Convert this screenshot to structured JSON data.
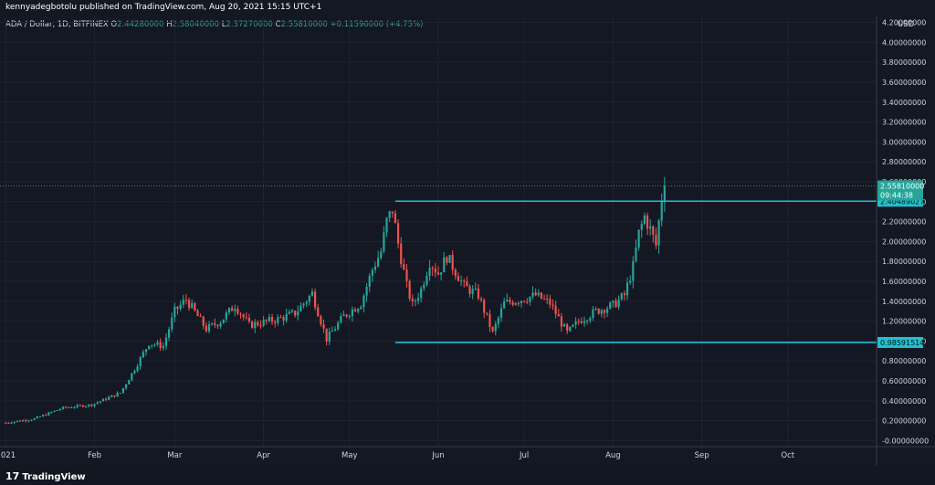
{
  "header": {
    "published": "kennyadegbotolu published on TradingView.com, Aug 20, 2021 15:15 UTC+1",
    "symbol": "ADA / Dollar, 1D, BITFINEX",
    "o_label": "O",
    "o_value": "2.44280000",
    "h_label": "H",
    "h_value": "2.58040000",
    "l_label": "L",
    "l_value": "2.37270000",
    "c_label": "C",
    "c_value": "2.55810000",
    "change": "+0.11590000 (+4.75%)"
  },
  "footer": {
    "logo_mark": "17",
    "logo_text": "TradingView"
  },
  "chart_data": {
    "type": "candlestick",
    "currency_label": "USD",
    "y_ticks": [
      "4.20000000",
      "4.00000000",
      "3.80000000",
      "3.60000000",
      "3.40000000",
      "3.20000000",
      "3.00000000",
      "2.80000000",
      "2.60000000",
      "2.40000000",
      "2.20000000",
      "2.00000000",
      "1.80000000",
      "1.60000000",
      "1.40000000",
      "1.20000000",
      "1.00000000",
      "0.80000000",
      "0.60000000",
      "0.40000000",
      "0.20000000",
      "-0.00000000"
    ],
    "y_tick_values": [
      4.2,
      4.0,
      3.8,
      3.6,
      3.4,
      3.2,
      3.0,
      2.8,
      2.6,
      2.4,
      2.2,
      2.0,
      1.8,
      1.6,
      1.4,
      1.2,
      1.0,
      0.8,
      0.6,
      0.4,
      0.2,
      0.0
    ],
    "ylim": [
      -0.06,
      4.26
    ],
    "x_labels": [
      "2021",
      "Feb",
      "Mar",
      "Apr",
      "May",
      "Jun",
      "Jul",
      "Aug",
      "Sep",
      "Oct"
    ],
    "x_label_days": [
      0,
      31,
      59,
      90,
      120,
      151,
      181,
      212,
      243,
      273
    ],
    "xlim": [
      -2,
      304
    ],
    "last_price": {
      "value": 2.5581,
      "label": "2.55810000",
      "countdown": "09:44:38"
    },
    "levels": [
      {
        "value": 2.40489027,
        "label": "2.40489027",
        "start_day": 136
      },
      {
        "value": 0.98591514,
        "label": "0.98591514",
        "start_day": 136
      }
    ],
    "anchor_points": [
      [
        0,
        0.18
      ],
      [
        10,
        0.22
      ],
      [
        20,
        0.33
      ],
      [
        30,
        0.36
      ],
      [
        40,
        0.48
      ],
      [
        45,
        0.72
      ],
      [
        50,
        0.98
      ],
      [
        55,
        0.95
      ],
      [
        59,
        1.3
      ],
      [
        63,
        1.42
      ],
      [
        70,
        1.12
      ],
      [
        75,
        1.2
      ],
      [
        80,
        1.36
      ],
      [
        85,
        1.16
      ],
      [
        95,
        1.22
      ],
      [
        101,
        1.28
      ],
      [
        107,
        1.48
      ],
      [
        112,
        1.02
      ],
      [
        118,
        1.25
      ],
      [
        124,
        1.38
      ],
      [
        128,
        1.72
      ],
      [
        131,
        1.9
      ],
      [
        133,
        2.2
      ],
      [
        135,
        2.32
      ],
      [
        137,
        1.98
      ],
      [
        140,
        1.55
      ],
      [
        142,
        1.36
      ],
      [
        145,
        1.52
      ],
      [
        148,
        1.8
      ],
      [
        151,
        1.68
      ],
      [
        154,
        1.85
      ],
      [
        160,
        1.55
      ],
      [
        165,
        1.46
      ],
      [
        170,
        1.08
      ],
      [
        174,
        1.38
      ],
      [
        180,
        1.42
      ],
      [
        185,
        1.46
      ],
      [
        190,
        1.38
      ],
      [
        196,
        1.08
      ],
      [
        200,
        1.2
      ],
      [
        206,
        1.3
      ],
      [
        212,
        1.36
      ],
      [
        216,
        1.46
      ],
      [
        219,
        1.75
      ],
      [
        221,
        2.08
      ],
      [
        223,
        2.25
      ],
      [
        225,
        2.12
      ],
      [
        227,
        1.96
      ],
      [
        229,
        2.44
      ],
      [
        230,
        2.5581
      ]
    ],
    "colors": {
      "up": "#26a69a",
      "down": "#ef5350",
      "level": "#22c0d0",
      "last_price_badge": "#26a69a",
      "level_badge": "#22c0d0"
    }
  }
}
